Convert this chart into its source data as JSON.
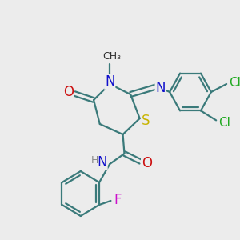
{
  "background_color": "#ececec",
  "bond_color": "#3a7a7a",
  "bond_lw": 1.6,
  "colors": {
    "N": "#1010cc",
    "O": "#cc1010",
    "S": "#c8b400",
    "Cl": "#22aa22",
    "F": "#cc10cc",
    "H": "#888888",
    "C": "#333333"
  },
  "font_size": 11
}
